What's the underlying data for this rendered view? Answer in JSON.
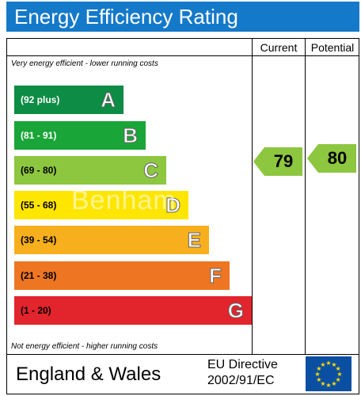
{
  "title": "Energy Efficiency Rating",
  "columns": {
    "current": "Current",
    "potential": "Potential"
  },
  "notes": {
    "top": "Very energy efficient - lower running costs",
    "bottom": "Not energy efficient - higher running costs"
  },
  "bands": [
    {
      "range": "(92 plus)",
      "letter": "A",
      "color": "#0c8c44",
      "range_color": "#ffffff"
    },
    {
      "range": "(81 - 91)",
      "letter": "B",
      "color": "#1aa538",
      "range_color": "#ffffff"
    },
    {
      "range": "(69 - 80)",
      "letter": "C",
      "color": "#8dc63f",
      "range_color": "#000000"
    },
    {
      "range": "(55 - 68)",
      "letter": "D",
      "color": "#ffe600",
      "range_color": "#000000"
    },
    {
      "range": "(39 - 54)",
      "letter": "E",
      "color": "#f7af1d",
      "range_color": "#000000"
    },
    {
      "range": "(21 - 38)",
      "letter": "F",
      "color": "#ee7623",
      "range_color": "#000000"
    },
    {
      "range": "(1 - 20)",
      "letter": "G",
      "color": "#e2242c",
      "range_color": "#000000"
    }
  ],
  "ratings": {
    "current": {
      "value": "79",
      "color": "#8dc63f"
    },
    "potential": {
      "value": "80",
      "color": "#8dc63f"
    }
  },
  "footer": {
    "country": "England & Wales",
    "directive_line1": "EU Directive",
    "directive_line2": "2002/91/EC",
    "flag_icon": "eu-flag-icon"
  },
  "watermark": "Benham"
}
